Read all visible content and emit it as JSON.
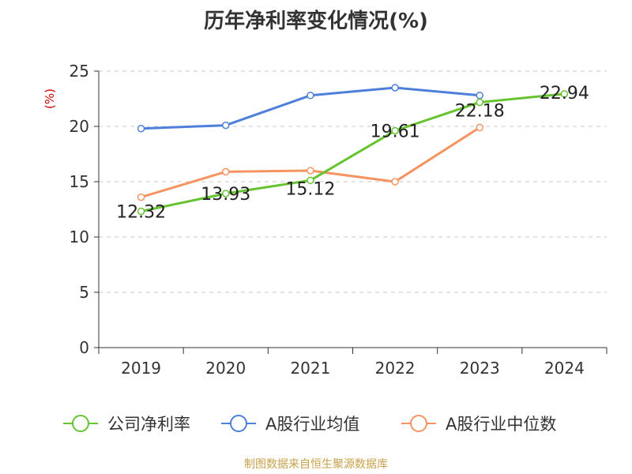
{
  "chart_data": {
    "type": "line",
    "title": "历年净利率变化情况(%)",
    "ylabel": "(%)",
    "xlabel": "",
    "categories": [
      "2019",
      "2020",
      "2021",
      "2022",
      "2023",
      "2024"
    ],
    "ylim": [
      0,
      25
    ],
    "yticks": [
      0,
      5,
      10,
      15,
      20,
      25
    ],
    "grid": true,
    "legend_position": "bottom",
    "series": [
      {
        "name": "公司净利率",
        "color": "#66c431",
        "values": [
          12.32,
          13.93,
          15.12,
          19.61,
          22.18,
          22.94
        ],
        "data_labels": [
          "12.32",
          "13.93",
          "15.12",
          "19.61",
          "22.18",
          "22.94"
        ]
      },
      {
        "name": "A股行业均值",
        "color": "#4e7fdb",
        "values": [
          19.8,
          20.1,
          22.8,
          23.5,
          22.8,
          null
        ]
      },
      {
        "name": "A股行业中位数",
        "color": "#f59461",
        "values": [
          13.6,
          15.9,
          16.0,
          15.0,
          19.9,
          null
        ]
      }
    ]
  },
  "source": "制图数据来自恒生聚源数据库"
}
